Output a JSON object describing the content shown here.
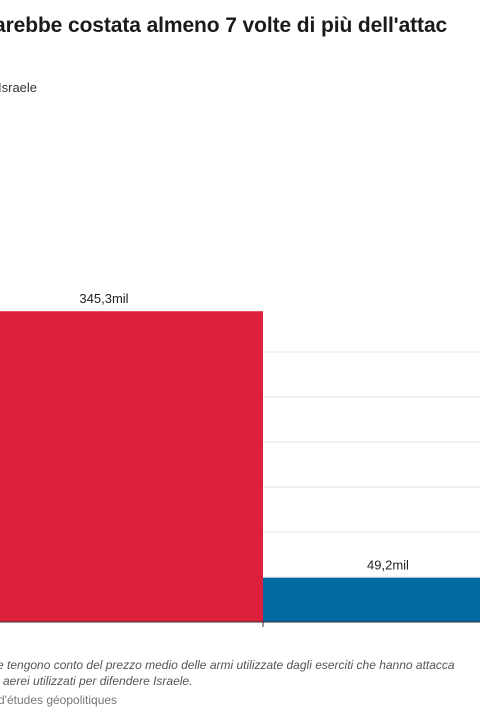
{
  "header": {
    "title": "arebbe costata almeno 7 volte di più dell'attac",
    "subtitle": "Israele"
  },
  "footer": {
    "note_line1": "e tengono conto del prezzo medio delle armi utilizzate dagli eserciti che hanno attacca",
    "note_line2": "i aerei utilizzati per difendere Israele.",
    "source": "d'études géopolitiques"
  },
  "colors": {
    "bar1": "#dd203c",
    "bar2": "#0269a3",
    "grid": "#e3e3e3",
    "axis": "#333333"
  },
  "chart_data": {
    "type": "bar",
    "title": "arebbe costata almeno 7 volte di più dell'attac",
    "categories": [
      "",
      ""
    ],
    "values": [
      345.3,
      49.2
    ],
    "value_labels": [
      "345,3mil",
      "49,2mil"
    ],
    "bar_colors": [
      "#dd203c",
      "#0269a3"
    ],
    "ylim": [
      0,
      350
    ],
    "grid": true
  }
}
